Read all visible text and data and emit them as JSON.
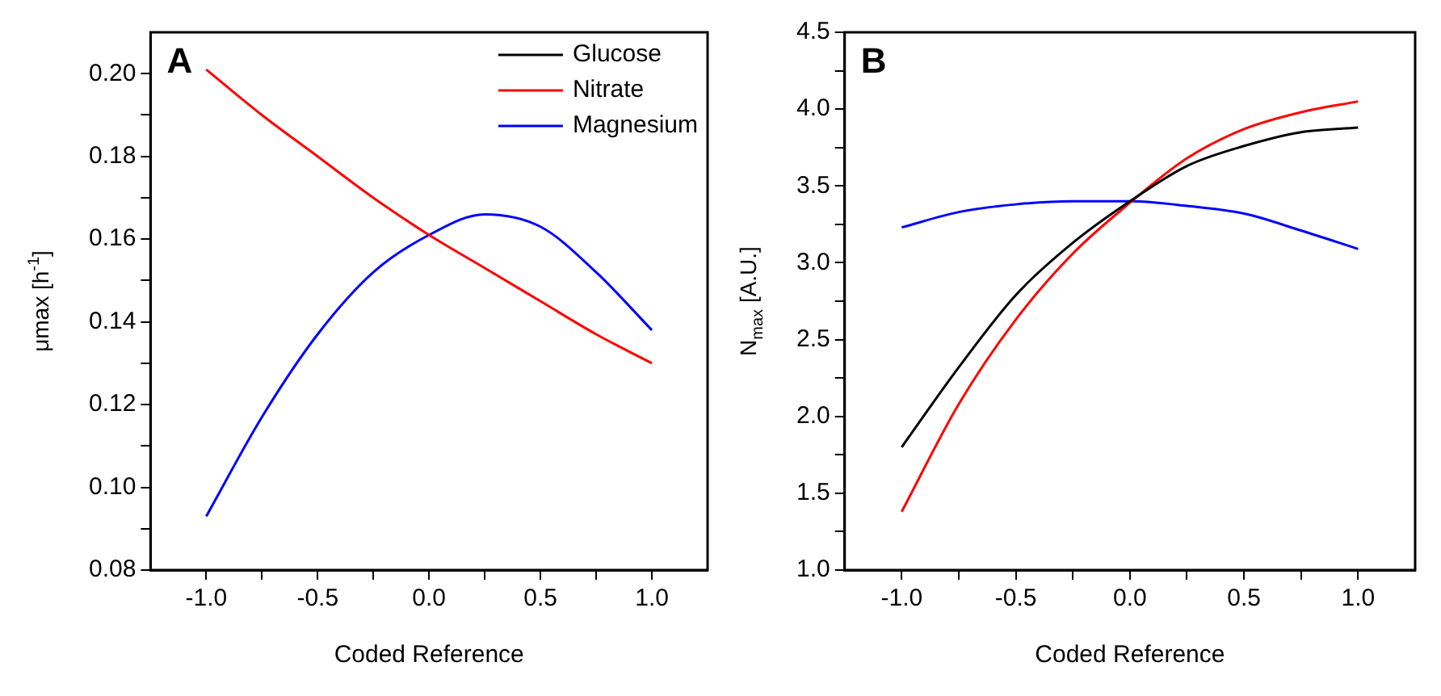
{
  "chart_data": [
    {
      "type": "line",
      "annotations": [
        "A"
      ],
      "xlabel": "Coded Reference",
      "ylabel": "μmax [h$^{-1}$]",
      "x": [
        -1,
        -0.75,
        -0.5,
        -0.25,
        0,
        0.25,
        0.5,
        0.75,
        1
      ],
      "series": [
        {
          "name": "Glucose",
          "color": "#000000",
          "values": [
            null,
            null,
            null,
            null,
            null,
            null,
            null,
            null,
            null
          ]
        },
        {
          "name": "Nitrate",
          "color": "#ff0000",
          "values": [
            0.201,
            0.19,
            0.18,
            0.17,
            0.161,
            0.153,
            0.145,
            0.137,
            0.13
          ]
        },
        {
          "name": "Magnesium",
          "color": "#0000ff",
          "values": [
            0.093,
            0.117,
            0.137,
            0.152,
            0.161,
            0.166,
            0.163,
            0.152,
            0.138
          ]
        }
      ],
      "xlim": [
        -1.25,
        1.25
      ],
      "xticks": [
        {
          "value": -1,
          "label": "-1.0"
        },
        {
          "value": -0.75,
          "label": null
        },
        {
          "value": -0.5,
          "label": "-0.5"
        },
        {
          "value": -0.25,
          "label": null
        },
        {
          "value": 0,
          "label": "0.0"
        },
        {
          "value": 0.25,
          "label": null
        },
        {
          "value": 0.5,
          "label": "0.5"
        },
        {
          "value": 0.75,
          "label": null
        },
        {
          "value": 1,
          "label": "1.0"
        }
      ],
      "ylim": [
        0.08,
        0.21
      ],
      "yticks": [
        {
          "value": 0.08,
          "label": "0.08"
        },
        {
          "value": 0.09,
          "label": null
        },
        {
          "value": 0.1,
          "label": "0.10"
        },
        {
          "value": 0.11,
          "label": null
        },
        {
          "value": 0.12,
          "label": "0.12"
        },
        {
          "value": 0.13,
          "label": null
        },
        {
          "value": 0.14,
          "label": "0.14"
        },
        {
          "value": 0.15,
          "label": null
        },
        {
          "value": 0.16,
          "label": "0.16"
        },
        {
          "value": 0.17,
          "label": null
        },
        {
          "value": 0.18,
          "label": "0.18"
        },
        {
          "value": 0.19,
          "label": null
        },
        {
          "value": 0.2,
          "label": "0.20"
        }
      ],
      "grid": false,
      "legend": "top right",
      "marker": "none",
      "line_style": "solid"
    },
    {
      "type": "line",
      "annotations": [
        "B"
      ],
      "xlabel": "Coded Reference",
      "ylabel": "N$_{max}$ [A.U.]",
      "x": [
        -1,
        -0.75,
        -0.5,
        -0.25,
        0,
        0.25,
        0.5,
        0.75,
        1
      ],
      "series": [
        {
          "color": "#000000",
          "values": [
            1.8,
            2.32,
            2.79,
            3.13,
            3.4,
            3.63,
            3.76,
            3.85,
            3.88
          ]
        },
        {
          "color": "#ff0000",
          "values": [
            1.38,
            2.08,
            2.63,
            3.06,
            3.39,
            3.68,
            3.87,
            3.98,
            4.05
          ]
        },
        {
          "color": "#0000ff",
          "values": [
            3.23,
            3.33,
            3.38,
            3.4,
            3.4,
            3.37,
            3.32,
            3.21,
            3.09
          ]
        }
      ],
      "xlim": [
        -1.25,
        1.25
      ],
      "xticks": [
        {
          "value": -1,
          "label": "-1.0"
        },
        {
          "value": -0.75,
          "label": null
        },
        {
          "value": -0.5,
          "label": "-0.5"
        },
        {
          "value": -0.25,
          "label": null
        },
        {
          "value": 0,
          "label": "0.0"
        },
        {
          "value": 0.25,
          "label": null
        },
        {
          "value": 0.5,
          "label": "0.5"
        },
        {
          "value": 0.75,
          "label": null
        },
        {
          "value": 1,
          "label": "1.0"
        }
      ],
      "ylim": [
        1.0,
        4.5
      ],
      "yticks": [
        {
          "value": 1,
          "label": "1.0"
        },
        {
          "value": 1.25,
          "label": null
        },
        {
          "value": 1.5,
          "label": "1.5"
        },
        {
          "value": 1.75,
          "label": null
        },
        {
          "value": 2,
          "label": "2.0"
        },
        {
          "value": 2.25,
          "label": null
        },
        {
          "value": 2.5,
          "label": "2.5"
        },
        {
          "value": 2.75,
          "label": null
        },
        {
          "value": 3,
          "label": "3.0"
        },
        {
          "value": 3.25,
          "label": null
        },
        {
          "value": 3.5,
          "label": "3.5"
        },
        {
          "value": 3.75,
          "label": null
        },
        {
          "value": 4,
          "label": "4.0"
        },
        {
          "value": 4.25,
          "label": null
        },
        {
          "value": 4.5,
          "label": "4.5"
        }
      ],
      "grid": false,
      "legend": false,
      "marker": "none",
      "line_style": "solid"
    }
  ]
}
